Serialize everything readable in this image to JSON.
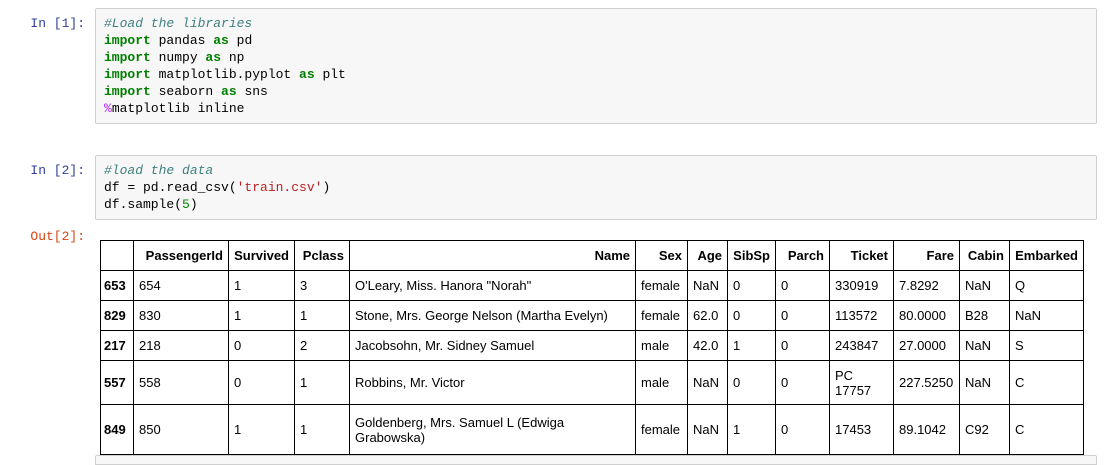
{
  "colors": {
    "in_prompt": "#303F9F",
    "out_prompt": "#D84315",
    "comment": "#408080",
    "keyword": "#008000",
    "string": "#BA2121",
    "number": "#008800",
    "magic": "#AA22FF",
    "input_background": "#f7f7f7",
    "input_border": "#cfcfcf",
    "table_border": "#000000"
  },
  "cell1": {
    "prompt": "In [1]:",
    "code_lines": [
      [
        {
          "c": "comment",
          "t": "#Load the libraries"
        }
      ],
      [
        {
          "c": "keyword",
          "t": "import"
        },
        {
          "c": "plain",
          "t": " pandas "
        },
        {
          "c": "keyword",
          "t": "as"
        },
        {
          "c": "plain",
          "t": " pd"
        }
      ],
      [
        {
          "c": "keyword",
          "t": "import"
        },
        {
          "c": "plain",
          "t": " numpy "
        },
        {
          "c": "keyword",
          "t": "as"
        },
        {
          "c": "plain",
          "t": " np"
        }
      ],
      [
        {
          "c": "keyword",
          "t": "import"
        },
        {
          "c": "plain",
          "t": " matplotlib.pyplot "
        },
        {
          "c": "keyword",
          "t": "as"
        },
        {
          "c": "plain",
          "t": " plt"
        }
      ],
      [
        {
          "c": "keyword",
          "t": "import"
        },
        {
          "c": "plain",
          "t": " seaborn "
        },
        {
          "c": "keyword",
          "t": "as"
        },
        {
          "c": "plain",
          "t": " sns"
        }
      ],
      [
        {
          "c": "magic",
          "t": "%"
        },
        {
          "c": "plain",
          "t": "matplotlib inline"
        }
      ]
    ]
  },
  "cell2": {
    "prompt": "In [2]:",
    "code_lines": [
      [
        {
          "c": "comment",
          "t": "#load the data"
        }
      ],
      [
        {
          "c": "plain",
          "t": "df = pd.read_csv("
        },
        {
          "c": "string",
          "t": "'train.csv'"
        },
        {
          "c": "plain",
          "t": ")"
        }
      ],
      [
        {
          "c": "plain",
          "t": "df.sample("
        },
        {
          "c": "number",
          "t": "5"
        },
        {
          "c": "plain",
          "t": ")"
        }
      ]
    ]
  },
  "out2": {
    "prompt": "Out[2]:",
    "table": {
      "columns": [
        "",
        "PassengerId",
        "Survived",
        "Pclass",
        "Name",
        "Sex",
        "Age",
        "SibSp",
        "Parch",
        "Ticket",
        "Fare",
        "Cabin",
        "Embarked"
      ],
      "rows": [
        {
          "index": "653",
          "cells": [
            "654",
            "1",
            "3",
            "O'Leary, Miss. Hanora \"Norah\"",
            "female",
            "NaN",
            "0",
            "0",
            "330919",
            "7.8292",
            "NaN",
            "Q"
          ]
        },
        {
          "index": "829",
          "cells": [
            "830",
            "1",
            "1",
            "Stone, Mrs. George Nelson (Martha Evelyn)",
            "female",
            "62.0",
            "0",
            "0",
            "113572",
            "80.0000",
            "B28",
            "NaN"
          ]
        },
        {
          "index": "217",
          "cells": [
            "218",
            "0",
            "2",
            "Jacobsohn, Mr. Sidney Samuel",
            "male",
            "42.0",
            "1",
            "0",
            "243847",
            "27.0000",
            "NaN",
            "S"
          ]
        },
        {
          "index": "557",
          "cells": [
            "558",
            "0",
            "1",
            "Robbins, Mr. Victor",
            "male",
            "NaN",
            "0",
            "0",
            "PC 17757",
            "227.5250",
            "NaN",
            "C"
          ]
        },
        {
          "index": "849",
          "cells": [
            "850",
            "1",
            "1",
            "Goldenberg, Mrs. Samuel L (Edwiga Grabowska)",
            "female",
            "NaN",
            "1",
            "0",
            "17453",
            "89.1042",
            "C92",
            "C"
          ]
        }
      ]
    }
  }
}
